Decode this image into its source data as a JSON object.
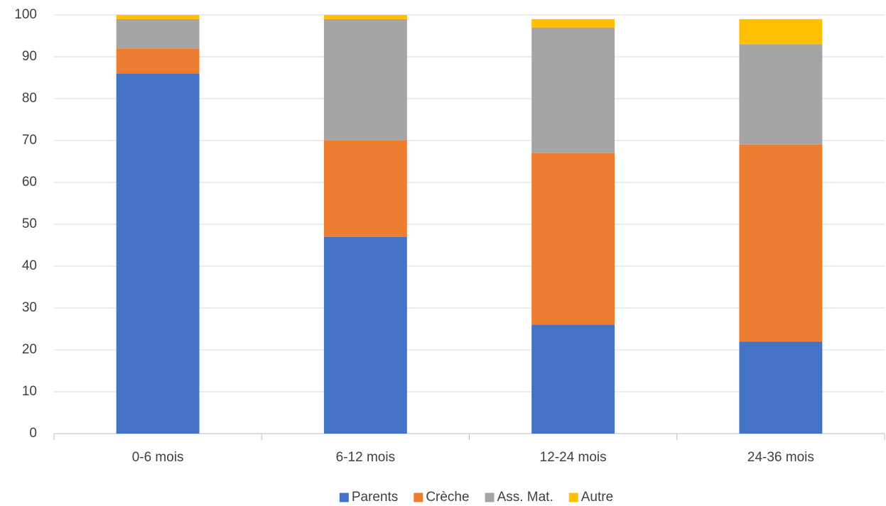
{
  "chart_data": {
    "type": "stacked_bar",
    "categories": [
      "0-6 mois",
      "6-12 mois",
      "12-24 mois",
      "24-36 mois"
    ],
    "series": [
      {
        "name": "Parents",
        "color": "#4472c4",
        "values": [
          86,
          47,
          26,
          22
        ]
      },
      {
        "name": "Crèche",
        "color": "#ed7d31",
        "values": [
          6,
          23,
          41,
          47
        ]
      },
      {
        "name": "Ass. Mat.",
        "color": "#a5a5a5",
        "values": [
          7,
          29,
          30,
          24
        ]
      },
      {
        "name": "Autre",
        "color": "#ffc000",
        "values": [
          1,
          1,
          2,
          6
        ]
      }
    ],
    "ylim": [
      0,
      100
    ],
    "yticks": [
      0,
      10,
      20,
      30,
      40,
      50,
      60,
      70,
      80,
      90,
      100
    ],
    "grid": true,
    "legend": "bottom"
  }
}
